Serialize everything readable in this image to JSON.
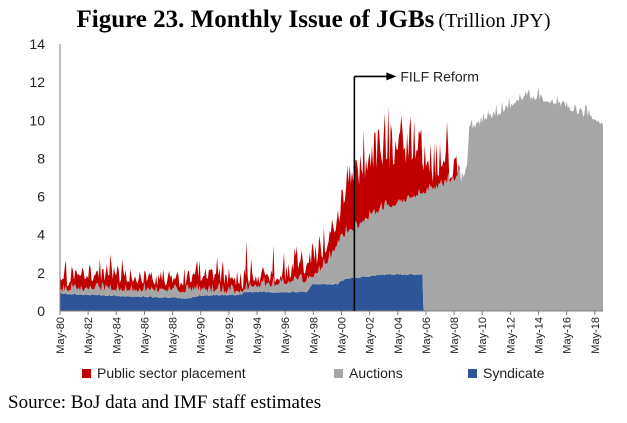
{
  "title": {
    "main": "Figure 23. Monthly Issue of JGBs",
    "unit": "(Trillion JPY)"
  },
  "source": "Source: BoJ data and IMF staff estimates",
  "colors": {
    "public": "#C00000",
    "auctions": "#A6A6A6",
    "syndicate": "#2E5597"
  },
  "chart_data": {
    "type": "area",
    "stacked": true,
    "title": "Figure 23. Monthly Issue of JGBs",
    "ylabel": "",
    "xlabel": "",
    "ylim": [
      0,
      14
    ],
    "y_ticks": [
      0,
      2,
      4,
      6,
      8,
      10,
      12,
      14
    ],
    "x_range": [
      "1980-05",
      "2018-12"
    ],
    "x_tick_labels": [
      "May-80",
      "May-82",
      "May-84",
      "May-86",
      "May-88",
      "May-90",
      "May-92",
      "May-94",
      "May-96",
      "May-98",
      "May-00",
      "May-02",
      "May-04",
      "May-06",
      "May-08",
      "May-10",
      "May-12",
      "May-14",
      "May-16",
      "May-18"
    ],
    "grid": false,
    "legend_position": "bottom",
    "series": [
      {
        "name": "Syndicate",
        "color": "#2E5597",
        "points": [
          [
            "1980-05",
            0.9
          ],
          [
            "1985-12",
            0.75
          ],
          [
            "1989-06",
            0.65
          ],
          [
            "1990-04",
            0.8
          ],
          [
            "1993-04",
            0.85
          ],
          [
            "1993-06",
            1.0
          ],
          [
            "1995-04",
            1.0
          ],
          [
            "1995-06",
            0.95
          ],
          [
            "1997-12",
            1.0
          ],
          [
            "1998-04",
            1.4
          ],
          [
            "2000-02",
            1.4
          ],
          [
            "2000-04",
            1.55
          ],
          [
            "2000-10",
            1.7
          ],
          [
            "2002-04",
            1.8
          ],
          [
            "2003-04",
            1.9
          ],
          [
            "2006-02",
            1.9
          ],
          [
            "2006-03",
            0
          ],
          [
            "2018-12",
            0
          ]
        ]
      },
      {
        "name": "Auctions",
        "color": "#A6A6A6",
        "points": [
          [
            "1980-05",
            0.25
          ],
          [
            "1985-05",
            0.4
          ],
          [
            "1989-05",
            0.45
          ],
          [
            "1991-05",
            0.25
          ],
          [
            "1993-05",
            0.2
          ],
          [
            "1995-05",
            0.45
          ],
          [
            "1997-05",
            0.65
          ],
          [
            "1998-05",
            0.45
          ],
          [
            "1999-05",
            1.2
          ],
          [
            "2000-05",
            2.3
          ],
          [
            "2001-05",
            2.6
          ],
          [
            "2002-05",
            3.2
          ],
          [
            "2003-05",
            3.5
          ],
          [
            "2004-05",
            3.8
          ],
          [
            "2005-05",
            4.1
          ],
          [
            "2006-02",
            4.3
          ],
          [
            "2006-03",
            6.3
          ],
          [
            "2007-05",
            6.6
          ],
          [
            "2008-05",
            7.0
          ],
          [
            "2008-10",
            7.2
          ],
          [
            "2008-11",
            6.8
          ],
          [
            "2009-04",
            7.6
          ],
          [
            "2009-06",
            9.6
          ],
          [
            "2010-05",
            10.0
          ],
          [
            "2011-05",
            10.3
          ],
          [
            "2012-05",
            10.8
          ],
          [
            "2013-05",
            11.3
          ],
          [
            "2014-05",
            11.2
          ],
          [
            "2015-05",
            11.0
          ],
          [
            "2016-05",
            10.8
          ],
          [
            "2017-05",
            10.4
          ],
          [
            "2018-05",
            10.1
          ],
          [
            "2018-12",
            9.9
          ]
        ]
      },
      {
        "name": "Public sector placement",
        "color": "#C00000",
        "points": [
          [
            "1980-05",
            0.4
          ],
          [
            "1983-05",
            0.8
          ],
          [
            "1987-05",
            0.6
          ],
          [
            "1989-05",
            0.5
          ],
          [
            "1990-05",
            0.65
          ],
          [
            "1991-05",
            0.9
          ],
          [
            "1992-05",
            0.5
          ],
          [
            "1993-05",
            0.6
          ],
          [
            "1994-05",
            0.7
          ],
          [
            "1995-05",
            0.6
          ],
          [
            "1996-05",
            0.6
          ],
          [
            "1997-05",
            0.9
          ],
          [
            "1998-05",
            1.0
          ],
          [
            "1999-05",
            0.9
          ],
          [
            "2000-05",
            1.6
          ],
          [
            "2000-12",
            2.8
          ],
          [
            "2002-05",
            2.9
          ],
          [
            "2004-05",
            2.8
          ],
          [
            "2005-05",
            2.6
          ],
          [
            "2006-02",
            2.2
          ],
          [
            "2006-03",
            1.2
          ],
          [
            "2007-05",
            1.0
          ],
          [
            "2008-05",
            0.4
          ],
          [
            "2008-09",
            0.2
          ],
          [
            "2008-10",
            0
          ],
          [
            "2018-12",
            0
          ]
        ]
      }
    ],
    "annotations": [
      {
        "text": "FILF Reform",
        "x": "2001-04",
        "y": 12.3
      }
    ],
    "legend": [
      "Public sector placement",
      "Auctions",
      "Syndicate"
    ]
  }
}
